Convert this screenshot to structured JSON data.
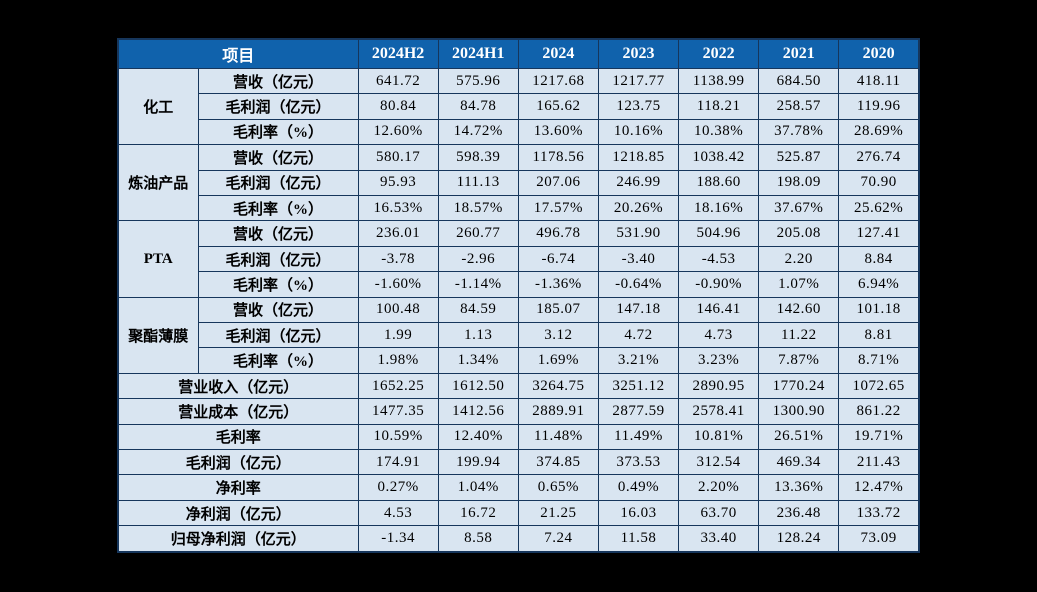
{
  "colors": {
    "page_bg": "#000000",
    "header_bg": "#1062ac",
    "header_text": "#ffffff",
    "body_bg": "#d9e5f1",
    "border": "#16365c",
    "text": "#000000"
  },
  "chart_data": {
    "type": "table",
    "corner_label": "项目",
    "columns": [
      "2024H2",
      "2024H1",
      "2024",
      "2023",
      "2022",
      "2021",
      "2020"
    ],
    "groups": [
      {
        "name": "化工",
        "rows": [
          {
            "label": "营收（亿元）",
            "values": [
              "641.72",
              "575.96",
              "1217.68",
              "1217.77",
              "1138.99",
              "684.50",
              "418.11"
            ]
          },
          {
            "label": "毛利润（亿元）",
            "values": [
              "80.84",
              "84.78",
              "165.62",
              "123.75",
              "118.21",
              "258.57",
              "119.96"
            ]
          },
          {
            "label": "毛利率（%）",
            "values": [
              "12.60%",
              "14.72%",
              "13.60%",
              "10.16%",
              "10.38%",
              "37.78%",
              "28.69%"
            ]
          }
        ]
      },
      {
        "name": "炼油产品",
        "rows": [
          {
            "label": "营收（亿元）",
            "values": [
              "580.17",
              "598.39",
              "1178.56",
              "1218.85",
              "1038.42",
              "525.87",
              "276.74"
            ]
          },
          {
            "label": "毛利润（亿元）",
            "values": [
              "95.93",
              "111.13",
              "207.06",
              "246.99",
              "188.60",
              "198.09",
              "70.90"
            ]
          },
          {
            "label": "毛利率（%）",
            "values": [
              "16.53%",
              "18.57%",
              "17.57%",
              "20.26%",
              "18.16%",
              "37.67%",
              "25.62%"
            ]
          }
        ]
      },
      {
        "name": "PTA",
        "rows": [
          {
            "label": "营收（亿元）",
            "values": [
              "236.01",
              "260.77",
              "496.78",
              "531.90",
              "504.96",
              "205.08",
              "127.41"
            ]
          },
          {
            "label": "毛利润（亿元）",
            "values": [
              "-3.78",
              "-2.96",
              "-6.74",
              "-3.40",
              "-4.53",
              "2.20",
              "8.84"
            ]
          },
          {
            "label": "毛利率（%）",
            "values": [
              "-1.60%",
              "-1.14%",
              "-1.36%",
              "-0.64%",
              "-0.90%",
              "1.07%",
              "6.94%"
            ]
          }
        ]
      },
      {
        "name": "聚酯薄膜",
        "rows": [
          {
            "label": "营收（亿元）",
            "values": [
              "100.48",
              "84.59",
              "185.07",
              "147.18",
              "146.41",
              "142.60",
              "101.18"
            ]
          },
          {
            "label": "毛利润（亿元）",
            "values": [
              "1.99",
              "1.13",
              "3.12",
              "4.72",
              "4.73",
              "11.22",
              "8.81"
            ]
          },
          {
            "label": "毛利率（%）",
            "values": [
              "1.98%",
              "1.34%",
              "1.69%",
              "3.21%",
              "3.23%",
              "7.87%",
              "8.71%"
            ]
          }
        ]
      }
    ],
    "summary_rows": [
      {
        "label": "营业收入（亿元）",
        "values": [
          "1652.25",
          "1612.50",
          "3264.75",
          "3251.12",
          "2890.95",
          "1770.24",
          "1072.65"
        ]
      },
      {
        "label": "营业成本（亿元）",
        "values": [
          "1477.35",
          "1412.56",
          "2889.91",
          "2877.59",
          "2578.41",
          "1300.90",
          "861.22"
        ]
      },
      {
        "label": "毛利率",
        "values": [
          "10.59%",
          "12.40%",
          "11.48%",
          "11.49%",
          "10.81%",
          "26.51%",
          "19.71%"
        ]
      },
      {
        "label": "毛利润（亿元）",
        "values": [
          "174.91",
          "199.94",
          "374.85",
          "373.53",
          "312.54",
          "469.34",
          "211.43"
        ]
      },
      {
        "label": "净利率",
        "values": [
          "0.27%",
          "1.04%",
          "0.65%",
          "0.49%",
          "2.20%",
          "13.36%",
          "12.47%"
        ]
      },
      {
        "label": "净利润（亿元）",
        "values": [
          "4.53",
          "16.72",
          "21.25",
          "16.03",
          "63.70",
          "236.48",
          "133.72"
        ]
      },
      {
        "label": "归母净利润（亿元）",
        "values": [
          "-1.34",
          "8.58",
          "7.24",
          "11.58",
          "33.40",
          "128.24",
          "73.09"
        ]
      }
    ]
  }
}
